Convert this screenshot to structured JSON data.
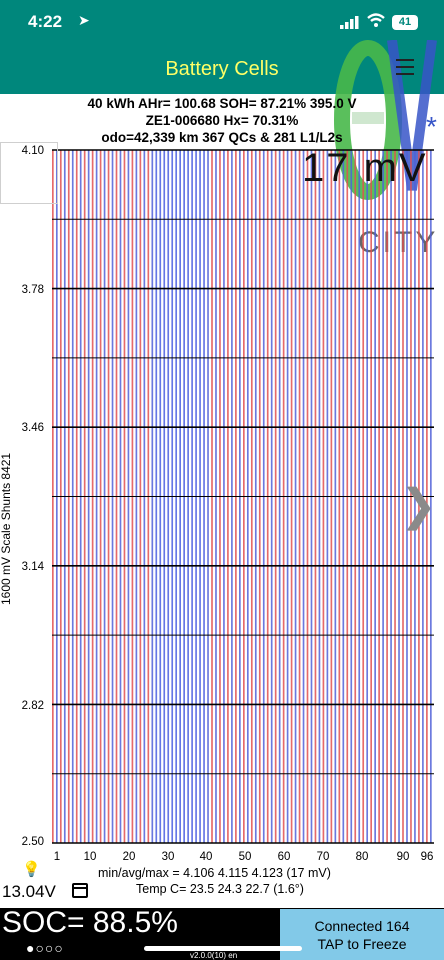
{
  "status": {
    "time": "4:22",
    "battery": "41"
  },
  "app": {
    "title": "Battery Cells"
  },
  "summary": {
    "line1": "40 kWh  AHr= 100.68  SOH= 87.21%  395.0 V",
    "line2": "ZE1-006680   Hx= 70.31%",
    "line3": "odo=42,339 km 367 QCs & 281 L1/L2s"
  },
  "overlay_voltage": "17 mV",
  "logo": {
    "text": "CITY"
  },
  "axis": {
    "y_label": "1600 mV Scale   Shunts 8421",
    "y_ticks": [
      "4.10",
      "3.78",
      "3.46",
      "3.14",
      "2.82",
      "2.50"
    ],
    "x_ticks": [
      "1",
      "10",
      "20",
      "30",
      "40",
      "50",
      "60",
      "70",
      "80",
      "90",
      "96"
    ]
  },
  "chart_data": {
    "type": "bar",
    "title": "",
    "x": "cell 1–96",
    "ylim": [
      2.5,
      4.1
    ],
    "min": 4.106,
    "avg": 4.115,
    "max": 4.123,
    "spread_mv": 17,
    "num_cells": 96,
    "colors": {
      "even": "#e05050",
      "odd": "#5060d8"
    }
  },
  "stats": "min/avg/max = 4.106  4.115  4.123  (17 mV)",
  "temperature": "Temp C= 23.5  24.3  22.7  (1.6°)",
  "pack_voltage": "13.04V",
  "soc": "SOC= 88.5%",
  "connection": {
    "line1": "Connected 164",
    "line2": "TAP to Freeze"
  },
  "version": "v2.0.0(10) en"
}
